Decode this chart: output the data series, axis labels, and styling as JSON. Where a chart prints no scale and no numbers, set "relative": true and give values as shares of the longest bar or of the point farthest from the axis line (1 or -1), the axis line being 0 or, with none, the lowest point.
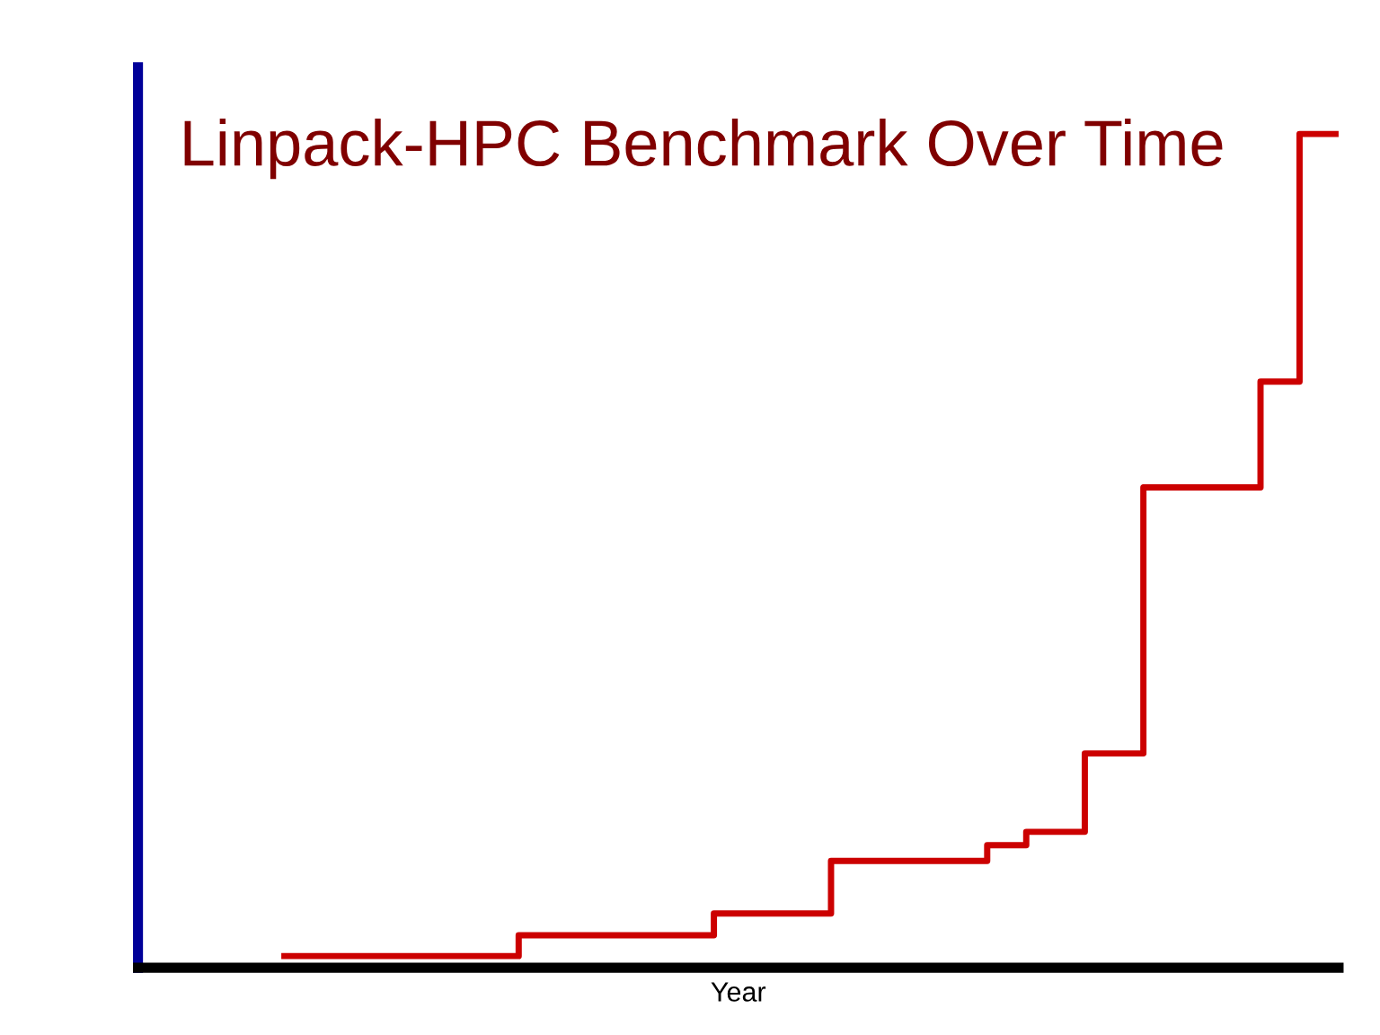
{
  "chart_data": {
    "type": "step",
    "title": "Linpack-HPC Benchmark Over Time",
    "xlabel": "Year",
    "relative": true,
    "categories": [
      null,
      null,
      null,
      null,
      null,
      null,
      null,
      null,
      null,
      null,
      null,
      null,
      null,
      null,
      null,
      null,
      null,
      null,
      null,
      null,
      null,
      null,
      null,
      null,
      null,
      null,
      null,
      null,
      null,
      null,
      null,
      null,
      null,
      null,
      null,
      null,
      null,
      null,
      null,
      null,
      null,
      null,
      null,
      null,
      null,
      null,
      null,
      null,
      null,
      null,
      null,
      null,
      null,
      null,
      null,
      null,
      null,
      null,
      null,
      null,
      null,
      null
    ],
    "series": [
      {
        "color": "#cc0000",
        "values": [
          null,
          null,
          null,
          null,
          null,
          null,
          null,
          0.014,
          0.014,
          0.014,
          0.014,
          0.014,
          0.014,
          0.014,
          0.014,
          0.014,
          0.014,
          0.014,
          0.014,
          0.039,
          0.039,
          0.039,
          0.039,
          0.039,
          0.039,
          0.039,
          0.039,
          0.039,
          0.039,
          0.065,
          0.065,
          0.065,
          0.065,
          0.065,
          0.065,
          0.128,
          0.128,
          0.128,
          0.128,
          0.128,
          0.128,
          0.128,
          0.128,
          0.147,
          0.147,
          0.163,
          0.163,
          0.163,
          0.257,
          0.257,
          0.257,
          0.576,
          0.576,
          0.576,
          0.576,
          0.576,
          0.576,
          0.703,
          0.703,
          1.0,
          1.0,
          1.0
        ]
      }
    ],
    "grid": false,
    "legend": false
  }
}
